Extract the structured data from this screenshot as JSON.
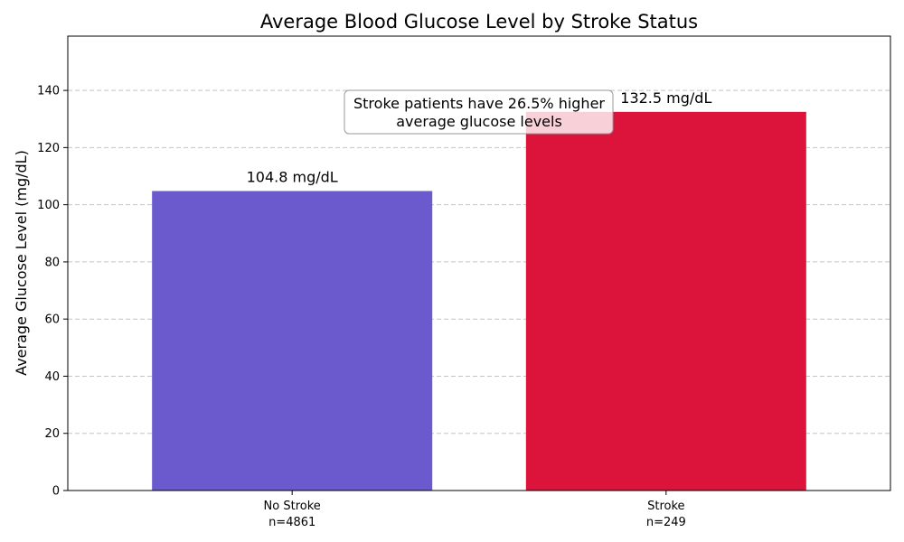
{
  "chart_data": {
    "type": "bar",
    "title": "Average Blood Glucose Level by Stroke Status",
    "xlabel": "",
    "ylabel": "Average Glucose Level (mg/dL)",
    "ylim": [
      0,
      159
    ],
    "yticks": [
      0,
      20,
      40,
      60,
      80,
      100,
      120,
      140
    ],
    "grid": "y-dashed",
    "categories": [
      "No Stroke",
      "Stroke"
    ],
    "category_counts": [
      "n=4861",
      "n=249"
    ],
    "values": [
      104.8,
      132.5
    ],
    "value_labels": [
      "104.8 mg/dL",
      "132.5 mg/dL"
    ],
    "colors": [
      "#6a5acd",
      "#dc143c"
    ],
    "annotation": {
      "lines": [
        "Stroke patients have 26.5% higher",
        "average glucose levels"
      ]
    }
  }
}
